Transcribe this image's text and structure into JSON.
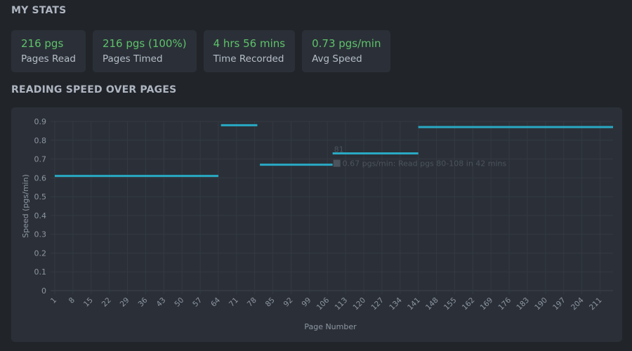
{
  "sections": {
    "stats_title": "MY STATS",
    "speed_title": "READING SPEED OVER PAGES"
  },
  "stats": [
    {
      "value": "216 pgs",
      "label": "Pages Read"
    },
    {
      "value": "216 pgs (100%)",
      "label": "Pages Timed"
    },
    {
      "value": "4 hrs 56 mins",
      "label": "Time Recorded"
    },
    {
      "value": "0.73 pgs/min",
      "label": "Avg Speed"
    }
  ],
  "colors": {
    "accent_green": "#5ec26a",
    "line": "#29a9c4",
    "background": "#212429",
    "card": "#2b3038"
  },
  "chart_data": {
    "type": "line",
    "xlabel": "Page Number",
    "ylabel": "Speed (pgs/min)",
    "xlim": [
      1,
      216
    ],
    "ylim": [
      0,
      0.9
    ],
    "y_ticks": [
      "0",
      "0.1",
      "0.2",
      "0.3",
      "0.4",
      "0.5",
      "0.6",
      "0.7",
      "0.8",
      "0.9"
    ],
    "x_ticks": [
      "1",
      "8",
      "15",
      "22",
      "29",
      "36",
      "43",
      "50",
      "57",
      "64",
      "71",
      "78",
      "85",
      "92",
      "99",
      "106",
      "113",
      "120",
      "127",
      "134",
      "141",
      "148",
      "155",
      "162",
      "169",
      "176",
      "183",
      "190",
      "197",
      "204",
      "211"
    ],
    "grid": true,
    "legend": false,
    "segments": [
      {
        "x_start": 1,
        "x_end": 64,
        "y": 0.61
      },
      {
        "x_start": 65,
        "x_end": 79,
        "y": 0.88
      },
      {
        "x_start": 80,
        "x_end": 108,
        "y": 0.67
      },
      {
        "x_start": 108,
        "x_end": 141,
        "y": 0.73
      },
      {
        "x_start": 141,
        "x_end": 216,
        "y": 0.87
      }
    ],
    "tooltip": {
      "title": "81",
      "text": "0.67 pgs/min: Read pgs 80-108 in 42 mins",
      "x": 108,
      "y": 0.67
    }
  }
}
